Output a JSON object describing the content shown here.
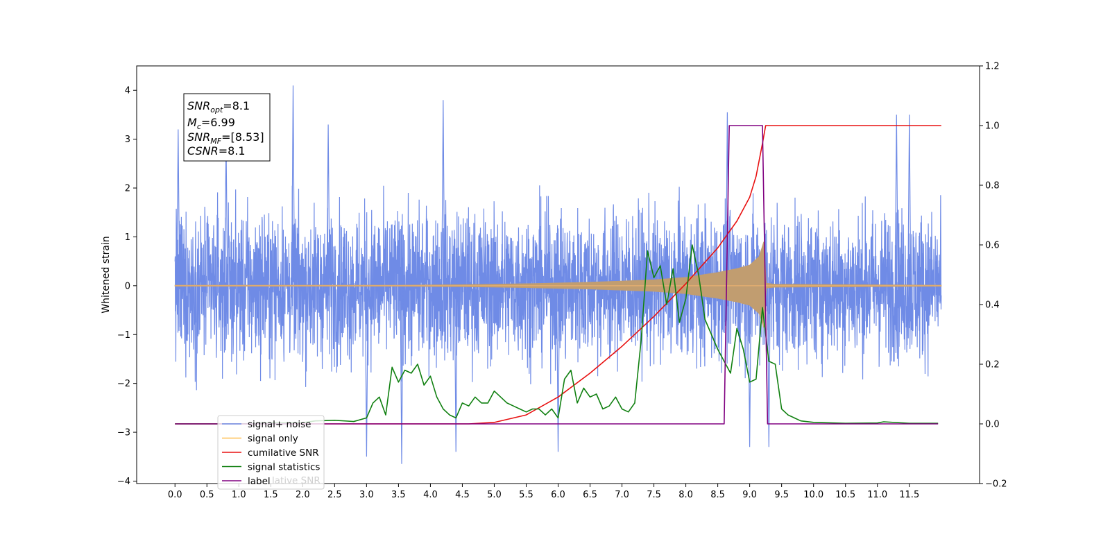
{
  "chart_data": {
    "type": "line",
    "title": "",
    "xlabel": "",
    "ylabel": "Whitened strain",
    "xlim": [
      -0.6,
      12.6
    ],
    "ylim": [
      -4.05,
      4.5
    ],
    "y2lim": [
      -0.2,
      1.2
    ],
    "grid": false,
    "legend_placement": "lower-left",
    "x_ticks": [
      "0.0",
      "0.5",
      "1.0",
      "1.5",
      "2.0",
      "2.5",
      "3.0",
      "3.5",
      "4.0",
      "4.5",
      "5.0",
      "5.5",
      "6.0",
      "6.5",
      "7.0",
      "7.5",
      "8.0",
      "8.5",
      "9.0",
      "9.5",
      "10.0",
      "10.5",
      "11.0",
      "11.5"
    ],
    "y_ticks": [
      "4",
      "3",
      "2",
      "1",
      "0",
      "−1",
      "−2",
      "−3",
      "−4"
    ],
    "y2_ticks": [
      "1.2",
      "1.0",
      "0.8",
      "0.6",
      "0.4",
      "0.2",
      "0.0",
      "−0.2"
    ],
    "annotation": {
      "lines": [
        {
          "base": "SNR",
          "sub": "opt",
          "rest": "=8.1"
        },
        {
          "base": "M",
          "sub": "c",
          "rest": "=6.99"
        },
        {
          "base": "SNR",
          "sub": "MF",
          "rest": "=[8.53]"
        },
        {
          "base": "CSNR",
          "sub": "",
          "rest": "=8.1"
        }
      ]
    },
    "legend": [
      {
        "label": "signal+ noise",
        "color": "#6f8be6"
      },
      {
        "label": "signal only",
        "color": "#ffbf50"
      },
      {
        "label": "cumilative SNR",
        "color": "#e81010"
      },
      {
        "label": "signal statistics",
        "color": "#108010"
      },
      {
        "label": "label",
        "color": "#800080"
      }
    ],
    "behind_legend_text": "lative SNR",
    "series": [
      {
        "name": "signal+ noise",
        "axis": "left",
        "color": "#6f8be6",
        "x_range": [
          0.0,
          12.0
        ],
        "envelope_typical": [
          -2.3,
          2.3
        ],
        "peaks": [
          [
            0.05,
            3.2
          ],
          [
            0.8,
            3.0
          ],
          [
            1.85,
            4.1
          ],
          [
            2.4,
            3.3
          ],
          [
            4.2,
            3.8
          ],
          [
            8.65,
            3.55
          ],
          [
            11.3,
            3.5
          ],
          [
            11.5,
            3.5
          ],
          [
            3.0,
            -3.5
          ],
          [
            3.55,
            -3.65
          ],
          [
            4.4,
            -3.4
          ],
          [
            6.0,
            -3.4
          ],
          [
            9.0,
            -3.3
          ],
          [
            9.3,
            -3.3
          ]
        ]
      },
      {
        "name": "signal only",
        "axis": "left",
        "color": "#ffbf50",
        "x_range": [
          0.0,
          12.0
        ],
        "envelope_x": [
          0,
          3.5,
          4.5,
          5.5,
          6.5,
          7.5,
          8.0,
          8.5,
          8.8,
          9.0,
          9.15,
          9.22,
          9.26,
          9.4,
          12.0
        ],
        "envelope_amp": [
          0.01,
          0.01,
          0.02,
          0.04,
          0.07,
          0.12,
          0.17,
          0.27,
          0.35,
          0.42,
          0.6,
          0.9,
          0.05,
          0.03,
          0.01
        ]
      },
      {
        "name": "cumilative SNR",
        "axis": "right",
        "color": "#e81010",
        "x": [
          0,
          4.6,
          5.0,
          5.5,
          6.0,
          6.5,
          7.0,
          7.5,
          8.0,
          8.5,
          8.8,
          9.0,
          9.1,
          9.2,
          9.25,
          12.0
        ],
        "y": [
          0.0,
          0.0,
          0.005,
          0.03,
          0.09,
          0.17,
          0.26,
          0.36,
          0.47,
          0.59,
          0.68,
          0.76,
          0.83,
          0.94,
          1.0,
          1.0
        ]
      },
      {
        "name": "signal statistics",
        "axis": "right",
        "color": "#108010",
        "x": [
          0,
          0.5,
          1,
          1.5,
          2,
          2.2,
          2.5,
          2.8,
          3.0,
          3.1,
          3.2,
          3.3,
          3.4,
          3.5,
          3.6,
          3.7,
          3.8,
          3.9,
          4.0,
          4.1,
          4.2,
          4.3,
          4.4,
          4.5,
          4.6,
          4.7,
          4.8,
          4.9,
          5.0,
          5.1,
          5.2,
          5.3,
          5.4,
          5.5,
          5.6,
          5.7,
          5.8,
          5.9,
          6.0,
          6.1,
          6.2,
          6.3,
          6.4,
          6.5,
          6.6,
          6.7,
          6.8,
          6.9,
          7.0,
          7.1,
          7.2,
          7.3,
          7.4,
          7.5,
          7.6,
          7.7,
          7.8,
          7.9,
          8.0,
          8.1,
          8.2,
          8.3,
          8.4,
          8.5,
          8.6,
          8.7,
          8.8,
          8.9,
          9.0,
          9.1,
          9.2,
          9.3,
          9.4,
          9.5,
          9.6,
          9.8,
          10,
          10.5,
          11,
          11.1,
          11.5,
          11.95
        ],
        "y": [
          0.0,
          0.0,
          0.0,
          0.003,
          0.004,
          0.01,
          0.012,
          0.008,
          0.02,
          0.07,
          0.09,
          0.03,
          0.19,
          0.14,
          0.18,
          0.17,
          0.2,
          0.13,
          0.16,
          0.09,
          0.05,
          0.03,
          0.02,
          0.07,
          0.06,
          0.09,
          0.07,
          0.07,
          0.11,
          0.09,
          0.07,
          0.06,
          0.05,
          0.04,
          0.05,
          0.05,
          0.03,
          0.05,
          0.02,
          0.15,
          0.18,
          0.07,
          0.12,
          0.09,
          0.1,
          0.05,
          0.06,
          0.09,
          0.05,
          0.04,
          0.07,
          0.28,
          0.58,
          0.49,
          0.53,
          0.4,
          0.52,
          0.34,
          0.42,
          0.6,
          0.5,
          0.35,
          0.3,
          0.25,
          0.21,
          0.17,
          0.32,
          0.25,
          0.14,
          0.15,
          0.39,
          0.21,
          0.2,
          0.05,
          0.03,
          0.01,
          0.005,
          0.002,
          0.003,
          0.007,
          0.002,
          0.002
        ]
      },
      {
        "name": "label",
        "axis": "right",
        "color": "#800080",
        "x": [
          0,
          8.6,
          8.68,
          9.2,
          9.28,
          11.95
        ],
        "y": [
          0,
          0,
          1,
          1,
          0,
          0
        ]
      }
    ]
  }
}
